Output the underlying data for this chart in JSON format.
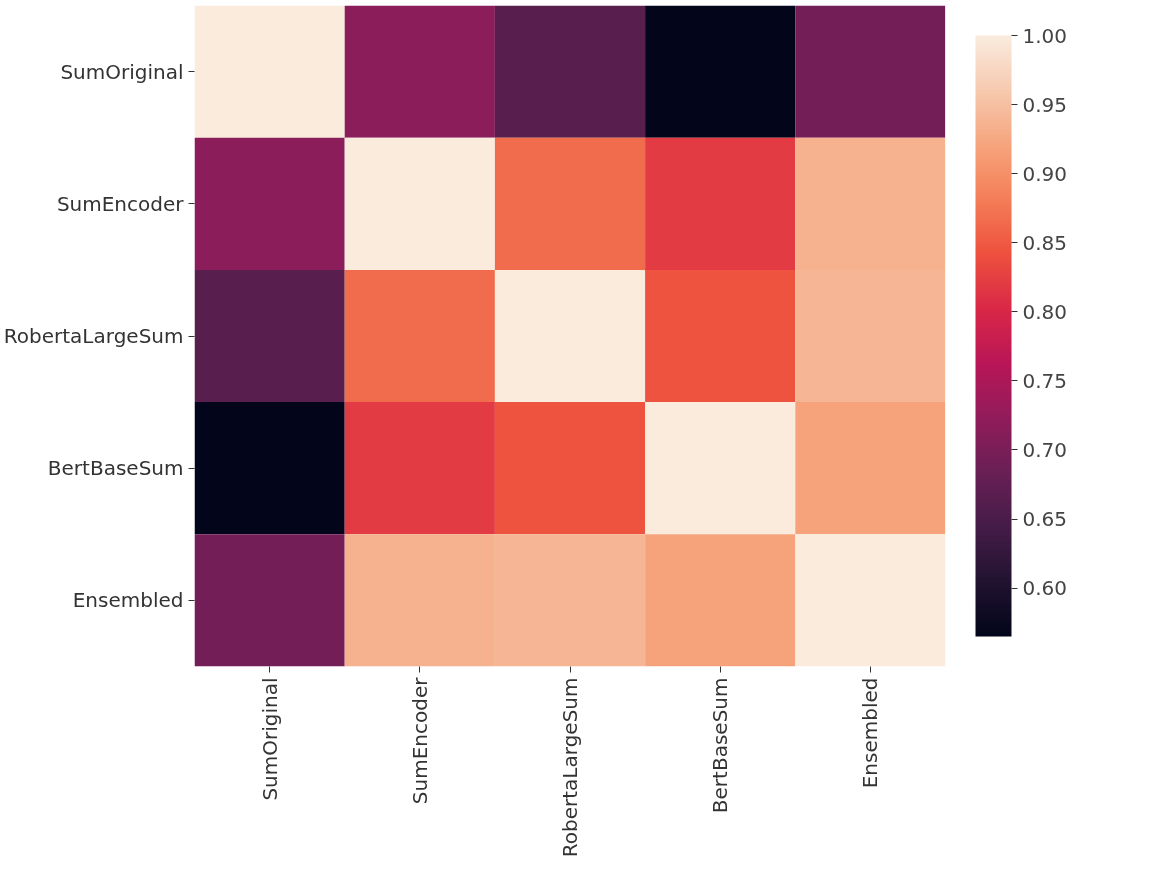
{
  "chart_data": {
    "type": "heatmap",
    "categories": [
      "SumOriginal",
      "SumEncoder",
      "RobertaLargeSum",
      "BertBaseSum",
      "Ensembled"
    ],
    "y_categories": [
      "SumOriginal",
      "SumEncoder",
      "RobertaLargeSum",
      "BertBaseSum",
      "Ensembled"
    ],
    "cells": [
      [
        1.0,
        0.715,
        0.665,
        0.565,
        0.695
      ],
      [
        0.715,
        1.0,
        0.865,
        0.82,
        0.935
      ],
      [
        0.665,
        0.865,
        1.0,
        0.845,
        0.94
      ],
      [
        0.565,
        0.82,
        0.845,
        1.0,
        0.92
      ],
      [
        0.695,
        0.935,
        0.94,
        0.92,
        1.0
      ]
    ],
    "clim": [
      0.565,
      1.0
    ],
    "cticks": [
      {
        "value": 0.6,
        "label": "0.60"
      },
      0.65,
      {
        "value": 0.7,
        "label": "0.70"
      },
      0.75,
      {
        "value": 0.8,
        "label": "0.80"
      },
      0.85,
      {
        "value": 0.9,
        "label": "0.90"
      },
      0.95,
      {
        "value": 1.0,
        "label": "1.00"
      }
    ]
  }
}
